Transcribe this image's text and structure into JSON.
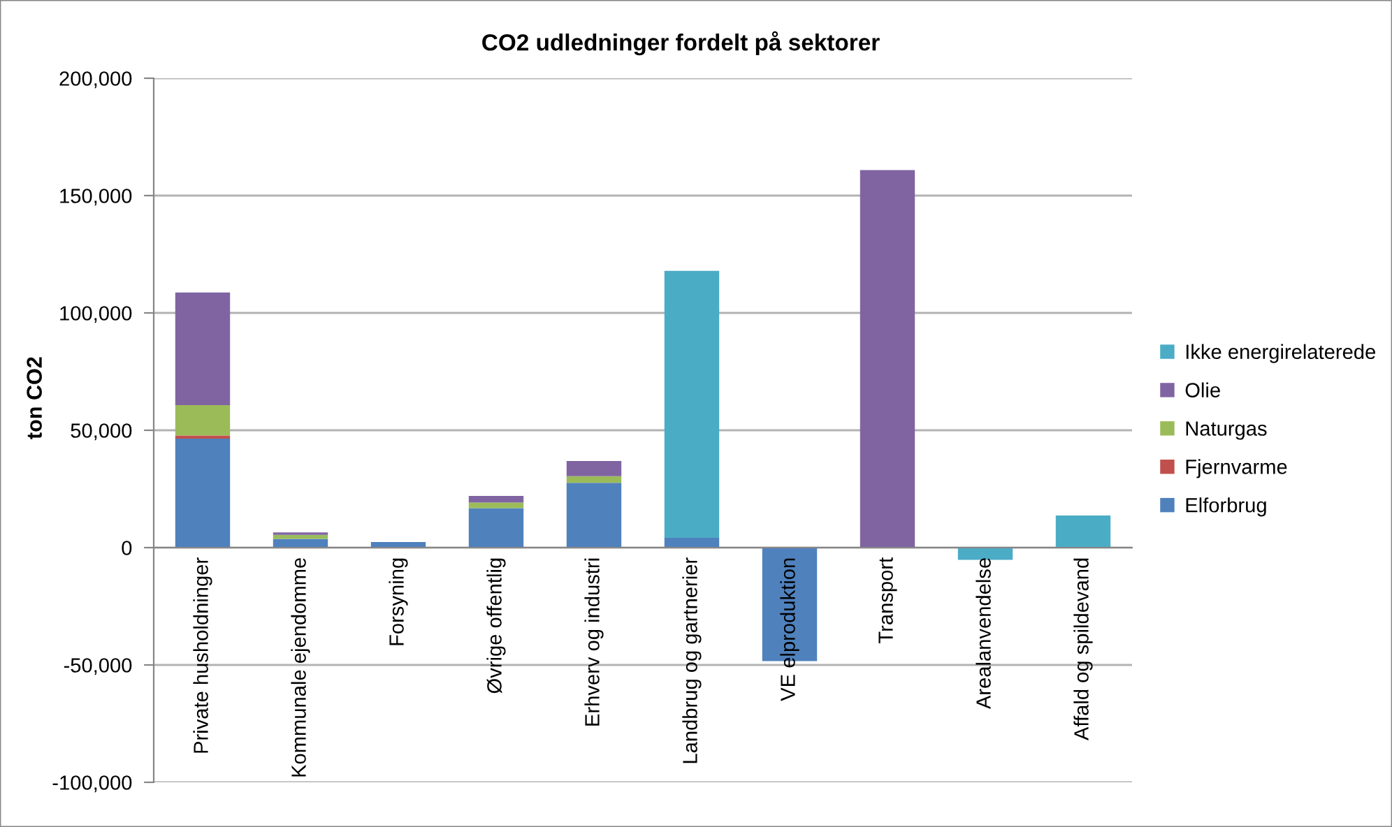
{
  "chart_data": {
    "type": "bar",
    "stacked": true,
    "title": "CO2 udledninger fordelt på sektorer",
    "ylabel": "ton CO2",
    "categories": [
      "Private husholdninger",
      "Kommunale ejendomme",
      "Forsyning",
      "Øvrige offentlig",
      "Erhverv og industri",
      "Landbrug og gartnerier",
      "VE elproduktion",
      "Transport",
      "Arealanvendelse",
      "Affald og spildevand"
    ],
    "series": [
      {
        "name": "Elforbrug",
        "color": "#4f81bd",
        "values": [
          46400,
          3700,
          2400,
          16800,
          27600,
          4200,
          -48400,
          null,
          null,
          null
        ]
      },
      {
        "name": "Fjernvarme",
        "color": "#c0504d",
        "values": [
          1400,
          null,
          null,
          null,
          null,
          null,
          null,
          null,
          null,
          null
        ]
      },
      {
        "name": "Naturgas",
        "color": "#9bbb59",
        "values": [
          12900,
          1700,
          null,
          2400,
          2800,
          null,
          null,
          null,
          null,
          null
        ]
      },
      {
        "name": "Olie",
        "color": "#8064a2",
        "values": [
          48000,
          1100,
          null,
          2800,
          6500,
          null,
          null,
          160900,
          null,
          null
        ]
      },
      {
        "name": "Ikke energirelaterede",
        "color": "#4bacc6",
        "values": [
          null,
          null,
          null,
          null,
          null,
          113700,
          null,
          null,
          -5200,
          13700
        ]
      }
    ],
    "ylim": [
      -100000,
      200000
    ],
    "yticks": [
      {
        "value": -100000,
        "label": "-100,000"
      },
      {
        "value": -50000,
        "label": "-50,000"
      },
      0,
      {
        "value": 50000,
        "label": "50,000"
      },
      {
        "value": 100000,
        "label": "100,000"
      },
      {
        "value": 150000,
        "label": "150,000"
      },
      {
        "value": 200000,
        "label": "200,000"
      }
    ],
    "grid": "y",
    "legend": "right"
  }
}
